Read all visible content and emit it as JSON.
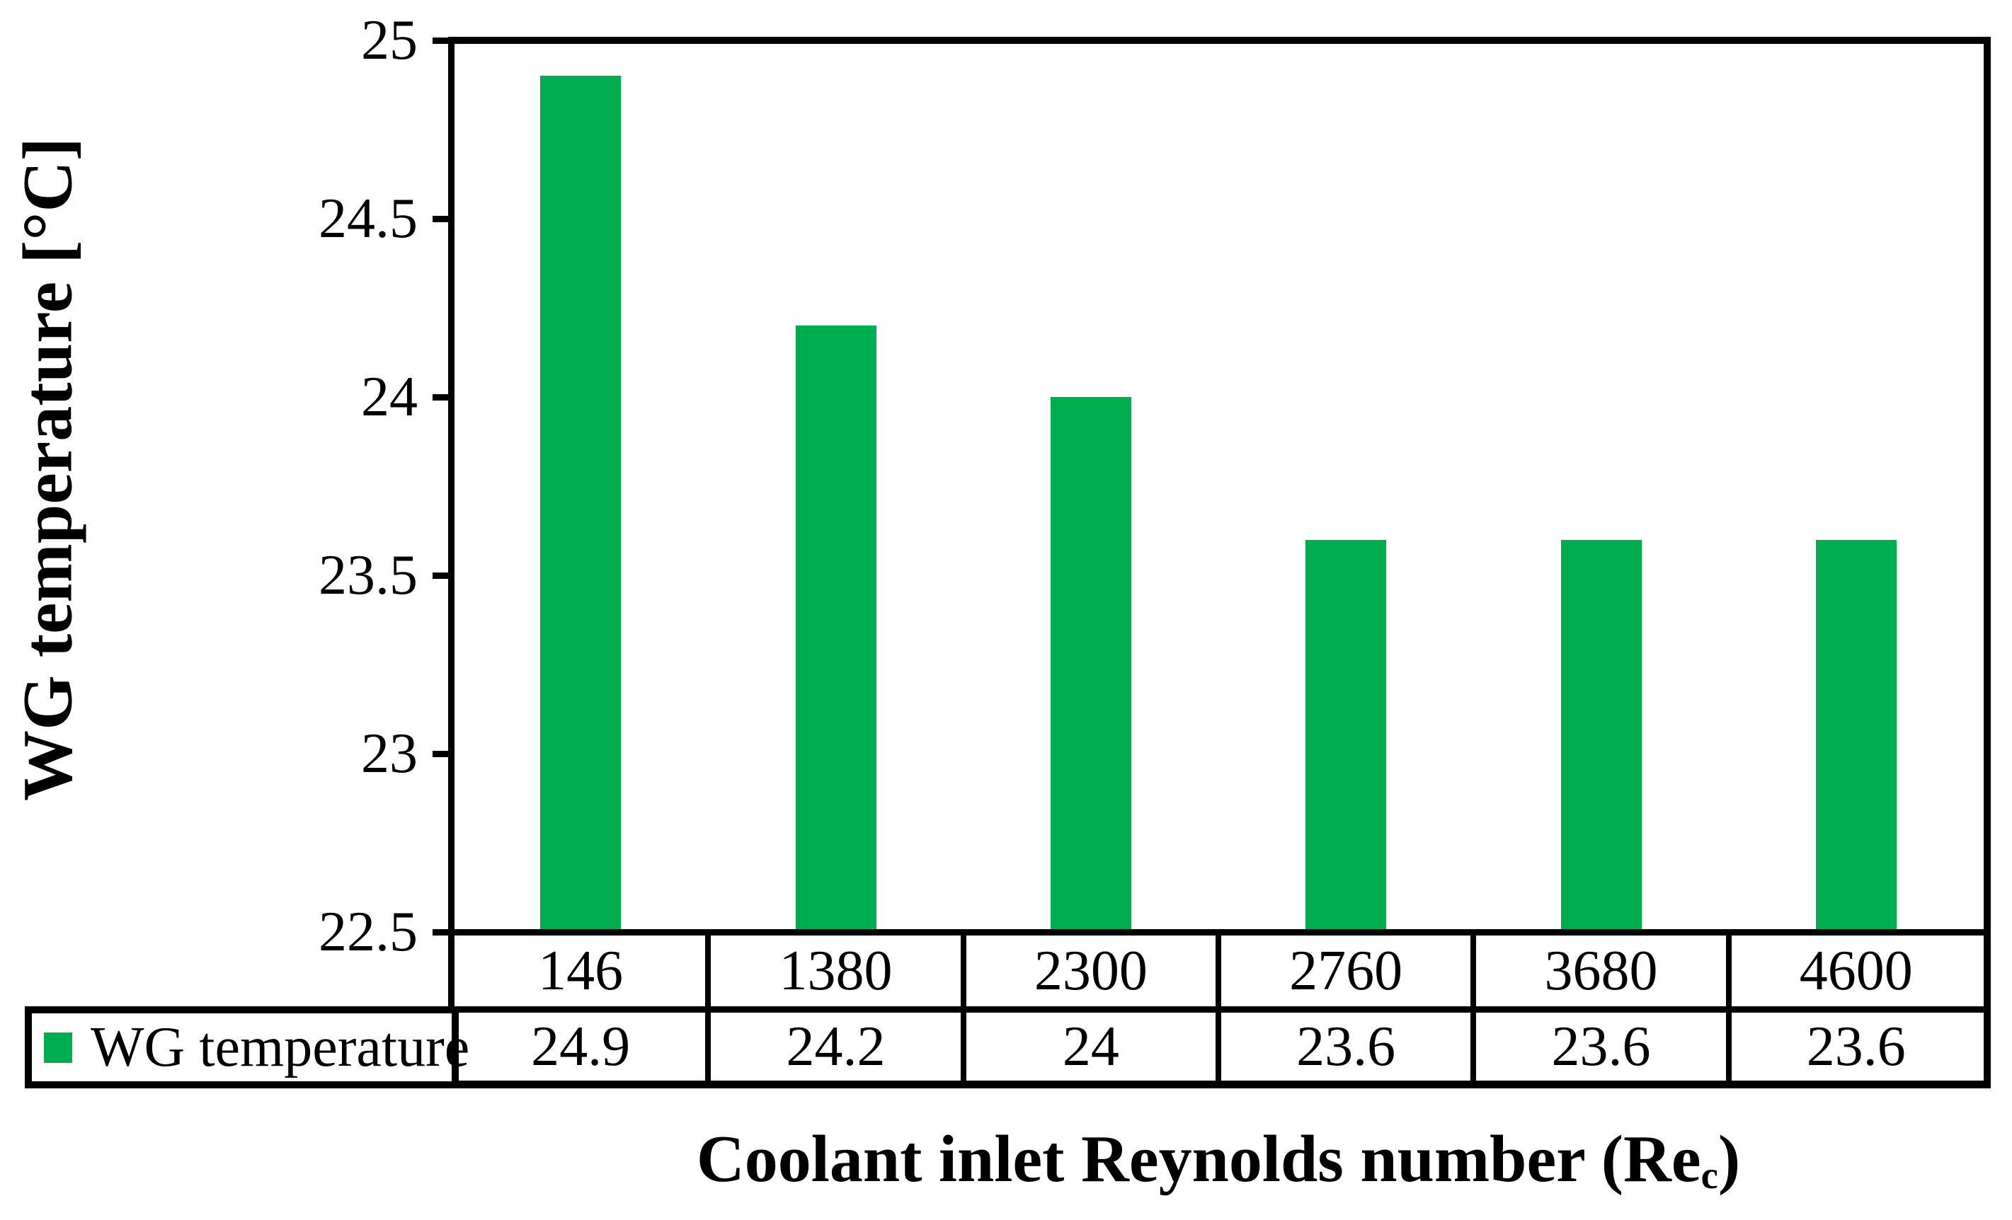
{
  "chart_data": {
    "type": "bar",
    "title": "",
    "categories": [
      "146",
      "1380",
      "2300",
      "2760",
      "3680",
      "4600"
    ],
    "series": [
      {
        "name": "WG temperature",
        "values": [
          24.9,
          24.2,
          24,
          23.6,
          23.6,
          23.6
        ],
        "color": "#00AC50"
      }
    ],
    "values_display": [
      "24.9",
      "24.2",
      "24",
      "23.6",
      "23.6",
      "23.6"
    ],
    "ylabel": "WG temperature [°C]",
    "xlabel_parts": {
      "main": "Coolant inlet Reynolds number (Re",
      "sub": "c",
      "end": ")"
    },
    "ylim": [
      22.5,
      25
    ],
    "ytick_step": 0.5,
    "ytick_labels": [
      "25",
      "24.5",
      "24",
      "23.5",
      "23",
      "22.5"
    ],
    "grid": false,
    "legend_position": "data-table-row-header",
    "has_data_table": true,
    "axis_color": "#000000",
    "background_color": "#ffffff"
  }
}
